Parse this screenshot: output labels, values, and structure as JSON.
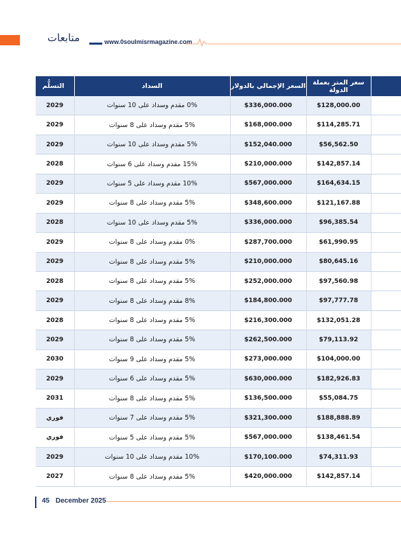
{
  "header": {
    "brand": "متابعات",
    "site_url": "www.0soulmisrmagazine.com"
  },
  "table": {
    "headers": {
      "delivery": "التسلُّم",
      "payment": "السداد",
      "total_usd": "السعر الإجمالي بالدولار",
      "meter_local": "سعر المتر بعملة الدولة"
    },
    "rows": [
      {
        "delivery": "2029",
        "payment": "0% مقدم وسداد على 10 سنوات",
        "total_usd": "$336,000.000",
        "meter_local": "$128,000.00"
      },
      {
        "delivery": "2029",
        "payment": "5% مقدم وسداد على 8 سنوات",
        "total_usd": "$168,000.000",
        "meter_local": "$114,285.71"
      },
      {
        "delivery": "2029",
        "payment": "5% مقدم وسداد على 10 سنوات",
        "total_usd": "$152,040.000",
        "meter_local": "$56,562.50"
      },
      {
        "delivery": "2028",
        "payment": "15% مقدم وسداد على 6 سنوات",
        "total_usd": "$210,000.000",
        "meter_local": "$142,857.14"
      },
      {
        "delivery": "2029",
        "payment": "10% مقدم وسداد على 5 سنوات",
        "total_usd": "$567,000.000",
        "meter_local": "$164,634.15"
      },
      {
        "delivery": "2029",
        "payment": "5% مقدم وسداد على 8 سنوات",
        "total_usd": "$348,600.000",
        "meter_local": "$121,167.88"
      },
      {
        "delivery": "2028",
        "payment": "5% مقدم وسداد على 10 سنوات",
        "total_usd": "$336,000.000",
        "meter_local": "$96,385.54"
      },
      {
        "delivery": "2029",
        "payment": "0% مقدم وسداد على 8 سنوات",
        "total_usd": "$287,700.000",
        "meter_local": "$61,990.95"
      },
      {
        "delivery": "2029",
        "payment": "5% مقدم وسداد على 8 سنوات",
        "total_usd": "$210,000.000",
        "meter_local": "$80,645.16"
      },
      {
        "delivery": "2028",
        "payment": "5% مقدم وسداد على 8 سنوات",
        "total_usd": "$252,000.000",
        "meter_local": "$97,560.98"
      },
      {
        "delivery": "2029",
        "payment": "8% مقدم وسداد على 8 سنوات",
        "total_usd": "$184,800.000",
        "meter_local": "$97,777.78"
      },
      {
        "delivery": "2028",
        "payment": "5% مقدم وسداد على 8 سنوات",
        "total_usd": "$216,300.000",
        "meter_local": "$132,051.28"
      },
      {
        "delivery": "2029",
        "payment": "5% مقدم وسداد على 8 سنوات",
        "total_usd": "$262,500.000",
        "meter_local": "$79,113.92"
      },
      {
        "delivery": "2030",
        "payment": "5% مقدم وسداد على 9 سنوات",
        "total_usd": "$273,000.000",
        "meter_local": "$104,000.00"
      },
      {
        "delivery": "2029",
        "payment": "5% مقدم وسداد على 6 سنوات",
        "total_usd": "$630,000.000",
        "meter_local": "$182,926.83"
      },
      {
        "delivery": "2031",
        "payment": "5% مقدم وسداد على 8 سنوات",
        "total_usd": "$136,500.000",
        "meter_local": "$55,084.75"
      },
      {
        "delivery": "فوري",
        "payment": "5% مقدم وسداد على 7 سنوات",
        "total_usd": "$321,300.000",
        "meter_local": "$188,888.89"
      },
      {
        "delivery": "فوري",
        "payment": "5% مقدم وسداد على 5 سنوات",
        "total_usd": "$567,000.000",
        "meter_local": "$138,461.54"
      },
      {
        "delivery": "2029",
        "payment": "10% مقدم وسداد على 10 سنوات",
        "total_usd": "$170,100.000",
        "meter_local": "$74,311.93"
      },
      {
        "delivery": "2027",
        "payment": "5% مقدم وسداد على 8 سنوات",
        "total_usd": "$420,000.000",
        "meter_local": "$142,857.14"
      }
    ]
  },
  "footer": {
    "page_number": "45",
    "issue_date": "December 2025"
  },
  "colors": {
    "accent_orange": "#f26522",
    "header_navy": "#1c3e7b",
    "row_stripe": "#e7eef8"
  }
}
